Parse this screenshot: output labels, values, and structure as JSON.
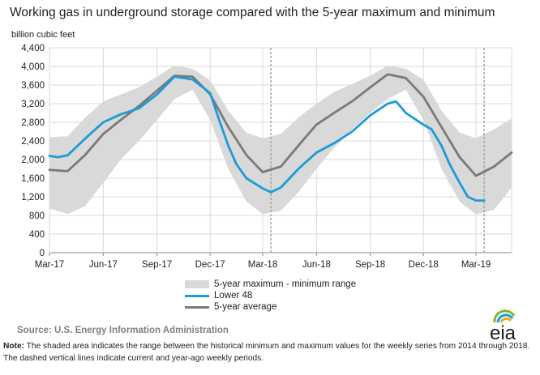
{
  "title": "Working gas in underground  storage compared with the 5-year maximum and minimum",
  "source": "Source:  U.S. Energy Information Administration",
  "note_label": "Note:",
  "note_text": " The shaded area indicates the range between the historical minimum and maximum values for the weekly series from 2014 through 2018. The dashed vertical lines indicate current and year-ago weekly periods.",
  "logo_text": "eia",
  "colors": {
    "range": "#d9d9d9",
    "lower48": "#1c9bd7",
    "average": "#7a7a7a",
    "grid": "#d9d9d9",
    "dashed": "#a6a6a6"
  },
  "chart_data": {
    "type": "area",
    "title": "Working gas in underground  storage compared with the 5-year maximum and minimum",
    "ylabel": "billion cubic feet",
    "xlabel": "",
    "ylim": [
      0,
      4400
    ],
    "yticks": [
      0,
      400,
      800,
      1200,
      1600,
      2000,
      2400,
      2800,
      3200,
      3600,
      4000,
      4400
    ],
    "ytick_labels": [
      "0",
      "400",
      "800",
      "1,200",
      "1,600",
      "2,000",
      "2,400",
      "2,800",
      "3,200",
      "3,600",
      "4,000",
      "4,400"
    ],
    "xlim": [
      "2017-03-01",
      "2019-05-01"
    ],
    "xticks": [
      "2017-03-01",
      "2017-06-01",
      "2017-09-01",
      "2017-12-01",
      "2018-03-01",
      "2018-06-01",
      "2018-09-01",
      "2018-12-01",
      "2019-03-01"
    ],
    "xtick_labels": [
      "Mar-17",
      "Jun-17",
      "Sep-17",
      "Dec-17",
      "Mar-18",
      "Jun-18",
      "Sep-18",
      "Dec-18",
      "Mar-19"
    ],
    "grid": true,
    "legend_placement": "bottom",
    "dashed_lines": [
      "2018-03-15",
      "2019-03-15"
    ],
    "series": [
      {
        "name": "5-year maximum - minimum range",
        "kind": "band",
        "x": [
          "2017-03-01",
          "2017-04-01",
          "2017-05-01",
          "2017-06-01",
          "2017-07-01",
          "2017-08-01",
          "2017-09-01",
          "2017-10-01",
          "2017-11-01",
          "2017-12-01",
          "2018-01-01",
          "2018-02-01",
          "2018-03-01",
          "2018-04-01",
          "2018-05-01",
          "2018-06-01",
          "2018-07-01",
          "2018-08-01",
          "2018-09-01",
          "2018-10-01",
          "2018-11-01",
          "2018-12-01",
          "2019-01-01",
          "2019-02-01",
          "2019-03-01",
          "2019-04-01",
          "2019-05-01"
        ],
        "max": [
          2480,
          2500,
          2900,
          3250,
          3400,
          3550,
          3780,
          4020,
          3950,
          3700,
          3050,
          2580,
          2460,
          2550,
          2900,
          3200,
          3450,
          3620,
          3800,
          4020,
          3950,
          3720,
          3050,
          2580,
          2460,
          2650,
          2880
        ],
        "min": [
          950,
          830,
          1000,
          1500,
          2000,
          2400,
          2850,
          3300,
          3500,
          2850,
          1800,
          1100,
          830,
          900,
          1300,
          1800,
          2250,
          2650,
          3000,
          3300,
          3500,
          2850,
          1800,
          1100,
          820,
          920,
          1400
        ]
      },
      {
        "name": "Lower 48",
        "kind": "line",
        "x": [
          "2017-03-01",
          "2017-03-15",
          "2017-04-01",
          "2017-05-01",
          "2017-06-01",
          "2017-07-01",
          "2017-08-01",
          "2017-09-01",
          "2017-10-01",
          "2017-11-01",
          "2017-12-01",
          "2017-12-15",
          "2018-01-01",
          "2018-01-15",
          "2018-02-01",
          "2018-03-01",
          "2018-03-15",
          "2018-04-01",
          "2018-05-01",
          "2018-06-01",
          "2018-07-01",
          "2018-08-01",
          "2018-09-01",
          "2018-10-01",
          "2018-10-15",
          "2018-11-01",
          "2018-12-01",
          "2018-12-15",
          "2019-01-01",
          "2019-01-15",
          "2019-02-01",
          "2019-02-15",
          "2019-03-01",
          "2019-03-15"
        ],
        "values": [
          2080,
          2050,
          2090,
          2450,
          2800,
          2970,
          3100,
          3400,
          3780,
          3720,
          3430,
          2900,
          2300,
          1900,
          1600,
          1380,
          1300,
          1400,
          1800,
          2150,
          2350,
          2600,
          2950,
          3200,
          3250,
          3000,
          2750,
          2650,
          2300,
          1900,
          1500,
          1200,
          1120,
          1120
        ]
      },
      {
        "name": "5-year average",
        "kind": "line",
        "x": [
          "2017-03-01",
          "2017-04-01",
          "2017-05-01",
          "2017-06-01",
          "2017-07-01",
          "2017-08-01",
          "2017-09-01",
          "2017-10-01",
          "2017-11-01",
          "2017-12-01",
          "2018-01-01",
          "2018-02-01",
          "2018-03-01",
          "2018-04-01",
          "2018-05-01",
          "2018-06-01",
          "2018-07-01",
          "2018-08-01",
          "2018-09-01",
          "2018-10-01",
          "2018-11-01",
          "2018-12-01",
          "2019-01-01",
          "2019-02-01",
          "2019-03-01",
          "2019-04-01",
          "2019-05-01"
        ],
        "values": [
          1780,
          1750,
          2100,
          2550,
          2850,
          3150,
          3480,
          3800,
          3780,
          3400,
          2700,
          2100,
          1730,
          1850,
          2300,
          2750,
          3000,
          3250,
          3550,
          3830,
          3750,
          3350,
          2700,
          2050,
          1650,
          1850,
          2150
        ]
      }
    ]
  }
}
